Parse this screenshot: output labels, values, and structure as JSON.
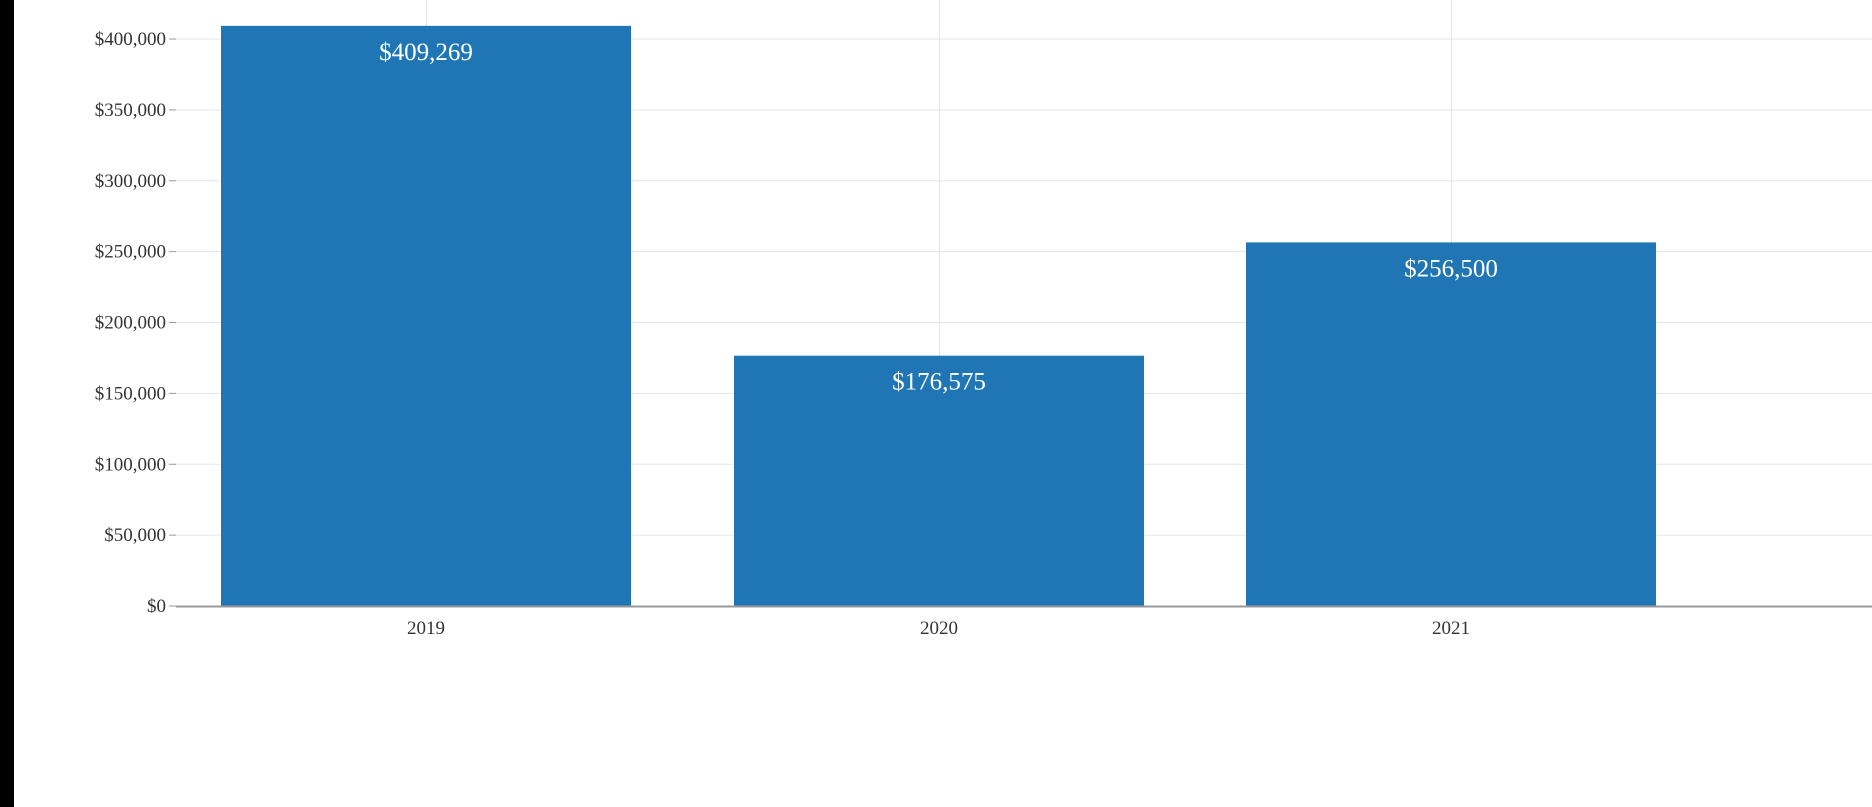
{
  "chart_data": {
    "type": "bar",
    "categories": [
      "2019",
      "2020",
      "2021"
    ],
    "values": [
      409269,
      176575,
      256500
    ],
    "value_labels": [
      "$409,269",
      "$176,575",
      "$256,500"
    ],
    "y_ticks": [
      0,
      50000,
      100000,
      150000,
      200000,
      250000,
      300000,
      350000,
      400000
    ],
    "y_tick_labels": [
      "$0",
      "$50,000",
      "$100,000",
      "$150,000",
      "$200,000",
      "$250,000",
      "$300,000",
      "$350,000",
      "$400,000"
    ],
    "ylim": [
      0,
      420000
    ],
    "grid": true,
    "legend": "none",
    "bar_color": "#2076b4",
    "grid_color": "#e5e5e5",
    "axis_color": "#999999",
    "text_color": "#333333"
  }
}
